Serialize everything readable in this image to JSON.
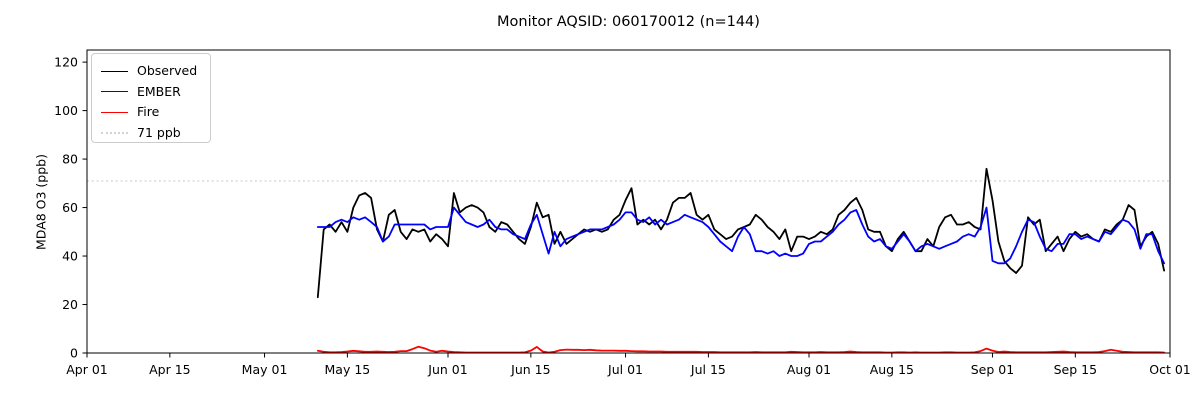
{
  "chart_data": {
    "type": "line",
    "title": "Monitor AQSID: 060170012 (n=144)",
    "xlabel": "",
    "ylabel": "MDA8 O3 (ppb)",
    "ylim": [
      0,
      125
    ],
    "y_ticks": [
      0,
      20,
      40,
      60,
      80,
      100,
      120
    ],
    "x_axis_days_max": 183,
    "x_ticks": [
      {
        "label": "Apr 01",
        "day": 0
      },
      {
        "label": "Apr 15",
        "day": 14
      },
      {
        "label": "May 01",
        "day": 30
      },
      {
        "label": "May 15",
        "day": 44
      },
      {
        "label": "Jun 01",
        "day": 61
      },
      {
        "label": "Jun 15",
        "day": 75
      },
      {
        "label": "Jul 01",
        "day": 91
      },
      {
        "label": "Jul 15",
        "day": 105
      },
      {
        "label": "Aug 01",
        "day": 122
      },
      {
        "label": "Aug 15",
        "day": 136
      },
      {
        "label": "Sep 01",
        "day": 153
      },
      {
        "label": "Sep 15",
        "day": 167
      },
      {
        "label": "Oct 01",
        "day": 183
      }
    ],
    "n": 144,
    "x_start": "May 10",
    "x_end": "Sep 30",
    "x_cadence": "daily",
    "x_start_day": 39,
    "grid": false,
    "legend_position": "upper left",
    "reference_line": {
      "label": "71 ppb",
      "value": 71,
      "color": "#d3d3d3",
      "style": "dotted"
    },
    "series": [
      {
        "name": "Observed",
        "color": "#000000",
        "values": [
          23,
          51,
          53,
          50,
          54,
          50,
          60,
          65,
          66,
          64,
          51,
          46,
          57,
          59,
          50,
          47,
          51,
          50,
          51,
          46,
          49,
          47,
          44,
          66,
          58,
          60,
          61,
          60,
          58,
          52,
          50,
          54,
          53,
          50,
          47,
          45,
          52,
          62,
          56,
          57,
          45,
          50,
          45,
          47,
          49,
          51,
          50,
          51,
          50,
          51,
          55,
          57,
          63,
          68,
          53,
          55,
          53,
          55,
          51,
          55,
          62,
          64,
          64,
          66,
          57,
          55,
          57,
          51,
          49,
          47,
          48,
          51,
          52,
          53,
          57,
          55,
          52,
          50,
          47,
          51,
          42,
          48,
          48,
          47,
          48,
          50,
          49,
          51,
          57,
          59,
          62,
          64,
          59,
          51,
          50,
          50,
          44,
          42,
          47,
          50,
          46,
          42,
          42,
          47,
          44,
          52,
          56,
          57,
          53,
          53,
          54,
          52,
          51,
          76,
          63,
          46,
          38,
          35,
          33,
          36,
          56,
          53,
          55,
          42,
          45,
          48,
          42,
          47,
          50,
          48,
          49,
          47,
          46,
          51,
          50,
          53,
          55,
          61,
          59,
          44,
          48,
          50,
          45,
          34
        ]
      },
      {
        "name": "EMBER",
        "color": "#0000ff",
        "values": [
          52,
          52,
          52,
          54,
          55,
          54,
          56,
          55,
          56,
          54,
          52,
          46,
          48,
          53,
          53,
          53,
          53,
          53,
          53,
          51,
          52,
          52,
          52,
          60,
          57,
          54,
          53,
          52,
          53,
          55,
          52,
          51,
          51,
          49,
          48,
          47,
          53,
          57,
          49,
          41,
          50,
          44,
          47,
          48,
          49,
          50,
          51,
          51,
          51,
          52,
          53,
          55,
          58,
          58,
          55,
          54,
          56,
          53,
          55,
          53,
          54,
          55,
          57,
          56,
          55,
          54,
          52,
          49,
          46,
          44,
          42,
          48,
          52,
          49,
          42,
          42,
          41,
          42,
          40,
          41,
          40,
          40,
          41,
          45,
          46,
          46,
          48,
          50,
          53,
          55,
          58,
          59,
          53,
          48,
          46,
          47,
          44,
          43,
          46,
          49,
          46,
          42,
          44,
          45,
          44,
          43,
          44,
          45,
          46,
          48,
          49,
          48,
          52,
          60,
          38,
          37,
          37,
          39,
          44,
          50,
          55,
          54,
          48,
          43,
          42,
          45,
          45,
          49,
          49,
          47,
          48,
          47,
          46,
          50,
          49,
          52,
          55,
          54,
          51,
          43,
          49,
          49,
          42,
          37
        ]
      },
      {
        "name": "Fire",
        "color": "#ff0000",
        "values": [
          0.9,
          0.5,
          0.3,
          0.3,
          0.4,
          0.6,
          0.9,
          0.7,
          0.5,
          0.5,
          0.6,
          0.5,
          0.4,
          0.5,
          0.8,
          0.8,
          1.6,
          2.6,
          2.0,
          1.0,
          0.5,
          0.9,
          0.6,
          0.4,
          0.3,
          0.2,
          0.2,
          0.2,
          0.2,
          0.2,
          0.2,
          0.2,
          0.2,
          0.2,
          0.2,
          0.3,
          1.0,
          2.5,
          0.6,
          0.2,
          0.5,
          1.2,
          1.4,
          1.3,
          1.3,
          1.2,
          1.3,
          1.1,
          1.0,
          1.0,
          1.0,
          0.9,
          0.9,
          0.8,
          0.7,
          0.7,
          0.6,
          0.6,
          0.6,
          0.5,
          0.5,
          0.5,
          0.5,
          0.5,
          0.5,
          0.4,
          0.4,
          0.4,
          0.3,
          0.3,
          0.3,
          0.3,
          0.3,
          0.3,
          0.4,
          0.3,
          0.3,
          0.3,
          0.3,
          0.3,
          0.5,
          0.4,
          0.3,
          0.3,
          0.3,
          0.4,
          0.3,
          0.3,
          0.3,
          0.4,
          0.6,
          0.4,
          0.3,
          0.3,
          0.3,
          0.3,
          0.2,
          0.2,
          0.3,
          0.3,
          0.2,
          0.3,
          0.2,
          0.2,
          0.2,
          0.2,
          0.3,
          0.3,
          0.2,
          0.2,
          0.2,
          0.3,
          0.8,
          1.8,
          1.0,
          0.4,
          0.6,
          0.4,
          0.3,
          0.3,
          0.3,
          0.3,
          0.3,
          0.3,
          0.4,
          0.5,
          0.6,
          0.4,
          0.3,
          0.3,
          0.3,
          0.3,
          0.4,
          0.8,
          1.3,
          0.9,
          0.5,
          0.4,
          0.3,
          0.3,
          0.3,
          0.3,
          0.3,
          0.2
        ]
      }
    ]
  }
}
